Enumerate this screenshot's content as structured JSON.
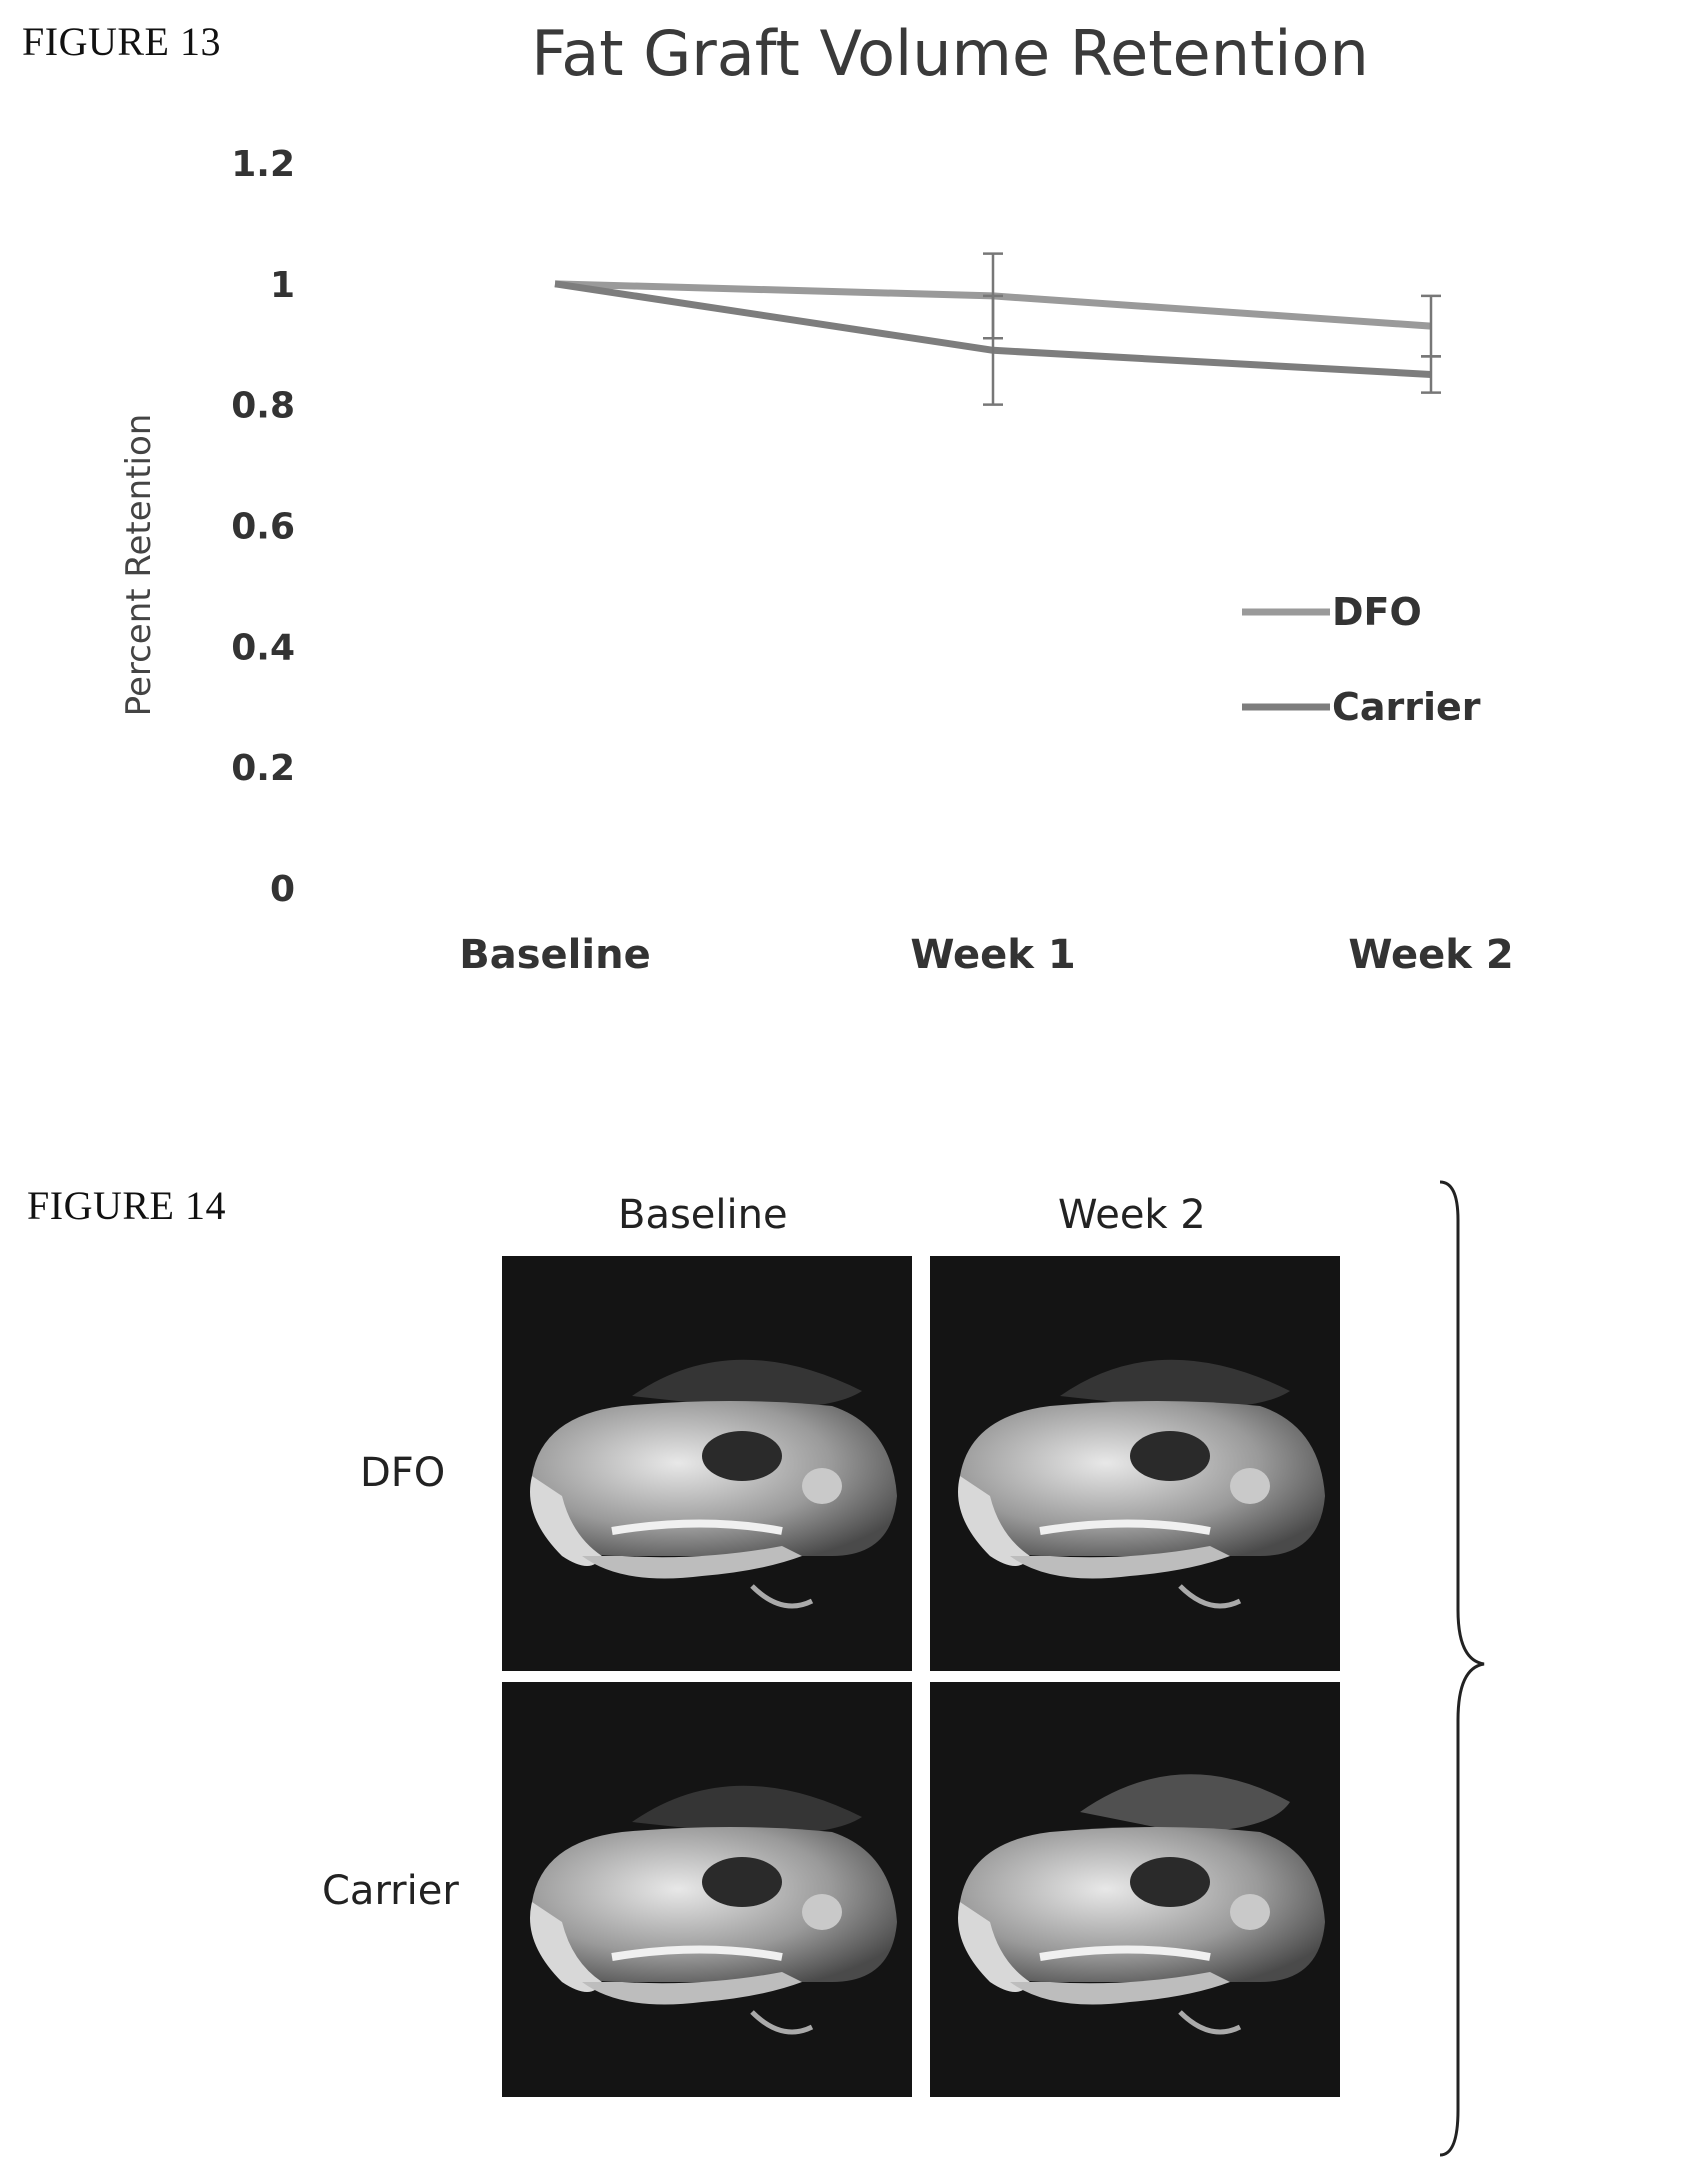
{
  "figure13": {
    "label": "FIGURE 13",
    "chart_data": {
      "type": "line",
      "title": "Fat Graft Volume Retention",
      "ylabel": "Percent Retention",
      "xlabel": "",
      "categories": [
        "Baseline",
        "Week 1",
        "Week 2"
      ],
      "ylim": [
        0,
        1.2
      ],
      "yticks": [
        "0",
        "0.2",
        "0.4",
        "0.6",
        "0.8",
        "1",
        "1.2"
      ],
      "grid": false,
      "legend": "right",
      "series": [
        {
          "name": "DFO",
          "values": [
            1.0,
            0.98,
            0.93
          ],
          "error": [
            0,
            0.07,
            0.05
          ],
          "color": "#9a9a9a"
        },
        {
          "name": "Carrier",
          "values": [
            1.0,
            0.89,
            0.85
          ],
          "error": [
            0,
            0.09,
            0.03
          ],
          "color": "#7d7d7d"
        }
      ]
    }
  },
  "figure14": {
    "label": "FIGURE 14",
    "columns": [
      "Baseline",
      "Week 2"
    ],
    "rows": [
      "DFO",
      "Carrier"
    ]
  }
}
